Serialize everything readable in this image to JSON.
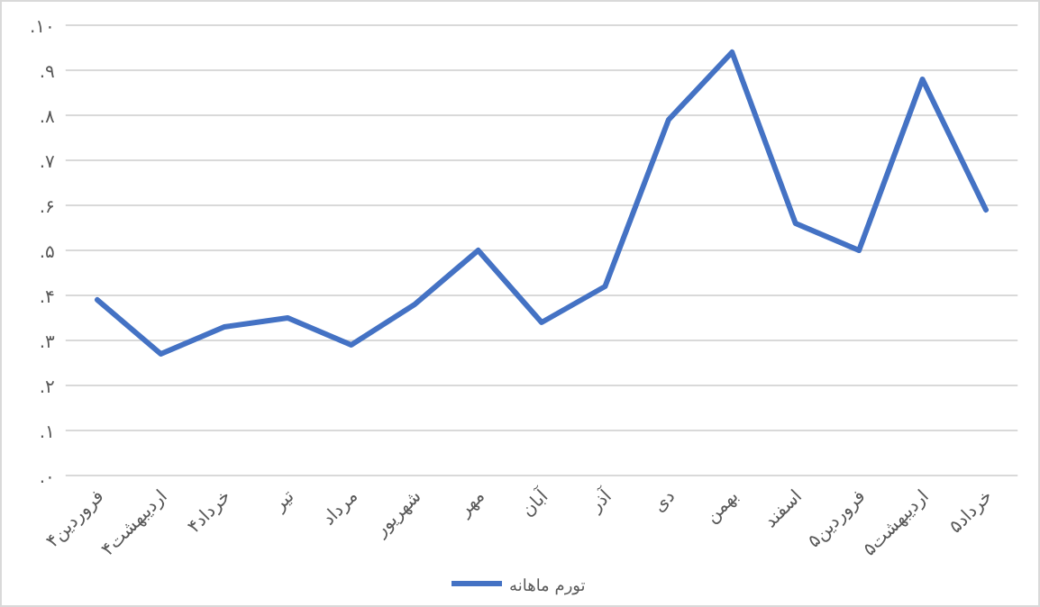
{
  "chart_data": {
    "type": "line",
    "categories": [
      "فروردین۴",
      "اردیبهشت۴",
      "خرداد۴",
      "تیر",
      "مرداد",
      "شهریور",
      "مهر",
      "آبان",
      "آذر",
      "دی",
      "بهمن",
      "اسفند",
      "فروردین۵",
      "اردیبهشت۵",
      "خرداد۵"
    ],
    "series": [
      {
        "name": "تورم ماهانه",
        "color": "#4472c4",
        "values": [
          3.9,
          2.7,
          3.3,
          3.5,
          2.9,
          3.8,
          5.0,
          3.4,
          4.2,
          7.9,
          9.4,
          5.6,
          5.0,
          8.8,
          5.9
        ]
      }
    ],
    "ylim": [
      0,
      10
    ],
    "yticks": [
      {
        "value": 0,
        "label": "۰."
      },
      {
        "value": 1,
        "label": "۱."
      },
      {
        "value": 2,
        "label": "۲."
      },
      {
        "value": 3,
        "label": "۳."
      },
      {
        "value": 4,
        "label": "۴."
      },
      {
        "value": 5,
        "label": "۵."
      },
      {
        "value": 6,
        "label": "۶."
      },
      {
        "value": 7,
        "label": "۷."
      },
      {
        "value": 8,
        "label": "۸."
      },
      {
        "value": 9,
        "label": "۹."
      },
      {
        "value": 10,
        "label": "۱۰."
      }
    ],
    "grid": "y",
    "legend": "bottom",
    "marker": "none",
    "line_style": "solid"
  }
}
